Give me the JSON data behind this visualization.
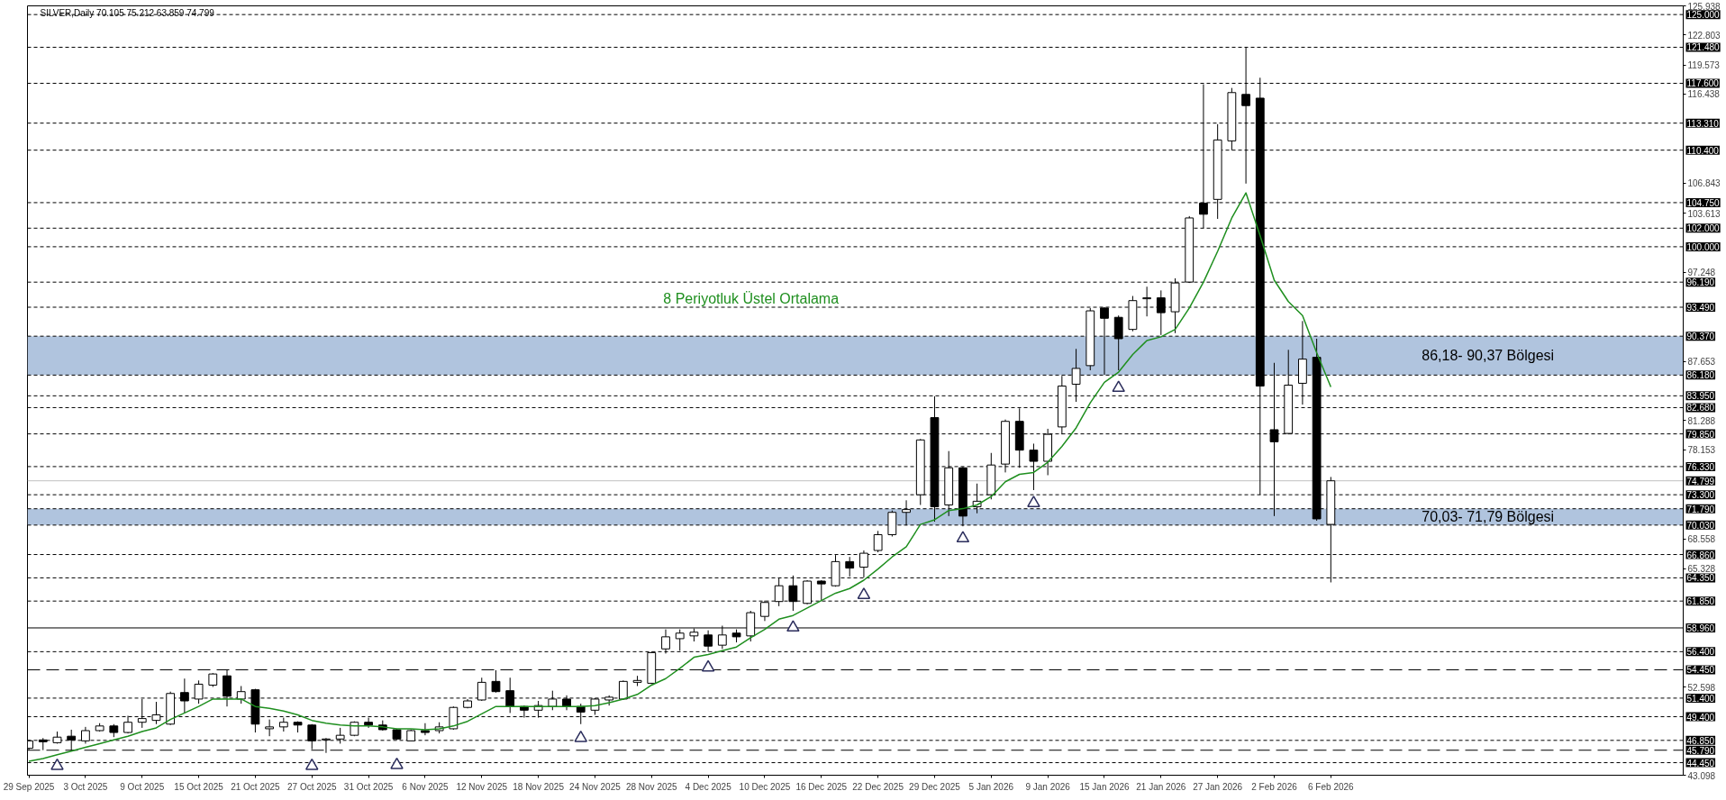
{
  "chart_data": {
    "type": "candlestick",
    "title": "SILVER,Daily  70.105 75.212 63.859 74.799",
    "categories": [
      "29 Sep 2025",
      null,
      null,
      null,
      "3 Oct 2025",
      null,
      null,
      null,
      "9 Oct 2025",
      null,
      null,
      null,
      "15 Oct 2025",
      null,
      null,
      null,
      "21 Oct 2025",
      null,
      null,
      null,
      "27 Oct 2025",
      null,
      null,
      null,
      "31 Oct 2025",
      null,
      null,
      null,
      "6 Nov 2025",
      null,
      null,
      null,
      "12 Nov 2025",
      null,
      null,
      null,
      "18 Nov 2025",
      null,
      null,
      null,
      "24 Nov 2025",
      null,
      null,
      null,
      "28 Nov 2025",
      null,
      null,
      null,
      "4 Dec 2025",
      null,
      null,
      null,
      "10 Dec 2025",
      null,
      null,
      null,
      "16 Dec 2025",
      null,
      null,
      null,
      "22 Dec 2025",
      null,
      null,
      null,
      "29 Dec 2025",
      null,
      null,
      null,
      "5 Jan 2026",
      null,
      null,
      null,
      "9 Jan 2026",
      null,
      null,
      null,
      "15 Jan 2026",
      null,
      null,
      null,
      "21 Jan 2026",
      null,
      null,
      null,
      "27 Jan 2026",
      null,
      null,
      null,
      "2 Feb 2026",
      null,
      null,
      null,
      "6 Feb 2026"
    ],
    "ohlc": [
      [
        46.0,
        46.9,
        45.8,
        46.8
      ],
      [
        46.9,
        47.1,
        45.8,
        46.7
      ],
      [
        46.6,
        47.8,
        46.5,
        47.2
      ],
      [
        47.3,
        48.0,
        45.7,
        46.9
      ],
      [
        46.8,
        48.3,
        46.5,
        47.9
      ],
      [
        47.9,
        48.7,
        47.8,
        48.4
      ],
      [
        48.4,
        48.6,
        47.2,
        47.7
      ],
      [
        47.7,
        49.5,
        47.6,
        48.8
      ],
      [
        48.8,
        51.3,
        48.2,
        49.2
      ],
      [
        49.0,
        51.0,
        48.6,
        49.6
      ],
      [
        48.6,
        52.1,
        48.5,
        51.9
      ],
      [
        52.0,
        53.5,
        49.8,
        51.1
      ],
      [
        51.3,
        53.3,
        50.8,
        52.9
      ],
      [
        52.8,
        54.1,
        52.6,
        54.0
      ],
      [
        53.8,
        54.4,
        50.5,
        51.6
      ],
      [
        51.3,
        52.7,
        50.8,
        52.1
      ],
      [
        52.3,
        52.4,
        47.7,
        48.6
      ],
      [
        48.1,
        49.1,
        47.3,
        48.3
      ],
      [
        48.3,
        49.3,
        47.8,
        48.8
      ],
      [
        48.8,
        48.9,
        47.7,
        48.5
      ],
      [
        48.5,
        48.6,
        45.9,
        46.8
      ],
      [
        46.9,
        47.1,
        45.5,
        47.0
      ],
      [
        47.0,
        48.2,
        46.5,
        47.4
      ],
      [
        47.4,
        48.9,
        47.3,
        48.8
      ],
      [
        48.8,
        49.3,
        48.2,
        48.5
      ],
      [
        48.5,
        49.0,
        47.9,
        48.0
      ],
      [
        48.0,
        48.1,
        46.9,
        47.0
      ],
      [
        46.8,
        48.0,
        46.8,
        47.9
      ],
      [
        47.9,
        48.7,
        47.4,
        47.7
      ],
      [
        47.9,
        48.8,
        47.6,
        48.3
      ],
      [
        48.1,
        50.5,
        48.0,
        50.4
      ],
      [
        50.4,
        51.3,
        50.3,
        51.1
      ],
      [
        51.2,
        53.6,
        51.1,
        53.1
      ],
      [
        53.2,
        54.4,
        52.0,
        52.1
      ],
      [
        52.2,
        53.6,
        49.8,
        50.5
      ],
      [
        50.5,
        50.6,
        49.3,
        50.1
      ],
      [
        50.1,
        51.1,
        49.3,
        50.6
      ],
      [
        50.5,
        52.2,
        50.1,
        51.3
      ],
      [
        51.3,
        51.7,
        50.1,
        50.5
      ],
      [
        50.5,
        50.8,
        48.6,
        49.9
      ],
      [
        50.1,
        51.4,
        49.6,
        51.3
      ],
      [
        51.2,
        51.7,
        50.6,
        51.5
      ],
      [
        51.3,
        53.3,
        51.2,
        53.2
      ],
      [
        53.1,
        53.8,
        52.7,
        53.3
      ],
      [
        53.0,
        56.4,
        52.9,
        56.3
      ],
      [
        56.7,
        58.8,
        56.2,
        58.0
      ],
      [
        57.8,
        58.8,
        56.5,
        58.4
      ],
      [
        58.1,
        58.9,
        57.5,
        58.5
      ],
      [
        58.2,
        58.7,
        56.4,
        57.0
      ],
      [
        57.1,
        59.2,
        56.7,
        58.2
      ],
      [
        58.4,
        58.8,
        57.4,
        58.0
      ],
      [
        58.1,
        60.8,
        57.5,
        60.6
      ],
      [
        60.2,
        61.9,
        59.7,
        61.7
      ],
      [
        61.8,
        64.3,
        61.3,
        63.5
      ],
      [
        63.5,
        64.6,
        60.8,
        61.8
      ],
      [
        61.6,
        64.1,
        61.5,
        64.0
      ],
      [
        64.0,
        64.1,
        61.9,
        63.7
      ],
      [
        63.5,
        66.8,
        63.4,
        66.1
      ],
      [
        66.1,
        66.6,
        64.5,
        65.4
      ],
      [
        65.5,
        67.3,
        64.4,
        67.0
      ],
      [
        67.3,
        69.4,
        67.1,
        69.0
      ],
      [
        69.0,
        71.6,
        68.8,
        71.4
      ],
      [
        71.4,
        72.7,
        70.0,
        71.7
      ],
      [
        73.3,
        79.3,
        72.2,
        79.2
      ],
      [
        81.6,
        83.9,
        70.4,
        72.0
      ],
      [
        72.2,
        78.0,
        71.0,
        76.2
      ],
      [
        76.2,
        76.3,
        69.9,
        71.0
      ],
      [
        72.0,
        74.5,
        71.3,
        72.6
      ],
      [
        73.3,
        77.8,
        72.8,
        76.5
      ],
      [
        76.6,
        81.4,
        75.7,
        81.2
      ],
      [
        81.2,
        82.6,
        76.2,
        78.1
      ],
      [
        78.1,
        78.8,
        73.8,
        76.9
      ],
      [
        76.9,
        80.4,
        75.4,
        79.8
      ],
      [
        80.6,
        86.1,
        79.8,
        85.0
      ],
      [
        85.2,
        89.0,
        83.3,
        86.9
      ],
      [
        87.2,
        93.4,
        86.7,
        93.1
      ],
      [
        93.4,
        93.5,
        86.2,
        92.3
      ],
      [
        92.4,
        92.6,
        86.7,
        90.1
      ],
      [
        91.1,
        94.7,
        90.9,
        94.2
      ],
      [
        94.4,
        95.7,
        92.5,
        94.5
      ],
      [
        94.5,
        95.3,
        90.5,
        92.9
      ],
      [
        93.0,
        96.6,
        90.7,
        96.1
      ],
      [
        96.2,
        103.3,
        96.1,
        103.1
      ],
      [
        104.7,
        117.5,
        102.0,
        103.5
      ],
      [
        105.1,
        113.2,
        103.0,
        111.5
      ],
      [
        111.4,
        117.1,
        110.4,
        116.6
      ],
      [
        116.4,
        121.5,
        106.8,
        115.2
      ],
      [
        116.0,
        118.2,
        73.3,
        85.0
      ],
      [
        80.3,
        87.5,
        71.0,
        79.0
      ],
      [
        79.9,
        88.9,
        79.8,
        85.1
      ],
      [
        85.3,
        92.0,
        83.0,
        87.9
      ],
      [
        88.1,
        90.1,
        70.5,
        70.7
      ],
      [
        70.105,
        75.212,
        63.859,
        74.799
      ]
    ],
    "colors": [
      "#ffffff",
      "#000000",
      "#ffffff",
      "#000000",
      "#ffffff",
      "#ffffff",
      "#000000",
      "#ffffff",
      "#ffffff",
      "#ffffff",
      "#ffffff",
      "#000000",
      "#ffffff",
      "#ffffff",
      "#000000",
      "#ffffff",
      "#000000",
      "#ffffff",
      "#ffffff",
      "#000000",
      "#000000",
      "#ffffff",
      "#ffffff",
      "#ffffff",
      "#000000",
      "#000000",
      "#000000",
      "#ffffff",
      "#000000",
      "#ffffff",
      "#ffffff",
      "#ffffff",
      "#ffffff",
      "#000000",
      "#000000",
      "#000000",
      "#ffffff",
      "#ffffff",
      "#000000",
      "#000000",
      "#ffffff",
      "#ffffff",
      "#ffffff",
      "#ffffff",
      "#ffffff",
      "#ffffff",
      "#ffffff",
      "#ffffff",
      "#000000",
      "#ffffff",
      "#000000",
      "#ffffff",
      "#ffffff",
      "#ffffff",
      "#000000",
      "#ffffff",
      "#000000",
      "#ffffff",
      "#000000",
      "#ffffff",
      "#ffffff",
      "#ffffff",
      "#ffffff",
      "#ffffff",
      "#000000",
      "#ffffff",
      "#000000",
      "#ffffff",
      "#ffffff",
      "#ffffff",
      "#000000",
      "#000000",
      "#ffffff",
      "#ffffff",
      "#ffffff",
      "#ffffff",
      "#000000",
      "#000000",
      "#ffffff",
      "#ffffff",
      "#000000",
      "#ffffff",
      "#ffffff",
      "#000000",
      "#ffffff",
      "#ffffff",
      "#000000",
      "#000000",
      "#000000",
      "#ffffff",
      "#ffffff",
      "#000000",
      "#ffffff"
    ],
    "series": [
      {
        "type": "line",
        "name": "8 Periyotluk Üstel Ortalama",
        "color": "#1f8f1f",
        "values": [
          44.6,
          44.9,
          45.3,
          45.7,
          46.1,
          46.5,
          46.9,
          47.3,
          47.8,
          48.2,
          49.1,
          49.8,
          50.5,
          51.3,
          51.3,
          51.3,
          50.5,
          50.3,
          50.0,
          49.6,
          49.0,
          48.7,
          48.5,
          48.4,
          48.4,
          48.3,
          48.1,
          48.1,
          48.0,
          48.1,
          48.4,
          48.9,
          49.7,
          50.5,
          50.5,
          50.5,
          50.5,
          50.5,
          50.5,
          50.5,
          50.6,
          50.9,
          51.3,
          51.8,
          52.8,
          53.5,
          54.6,
          55.8,
          56.1,
          56.5,
          56.9,
          57.9,
          58.8,
          59.9,
          60.3,
          61.1,
          61.9,
          62.7,
          63.2,
          64.1,
          65.3,
          66.6,
          67.7,
          70.1,
          70.6,
          71.6,
          71.8,
          72.2,
          73.1,
          74.7,
          75.5,
          75.7,
          76.8,
          78.5,
          80.5,
          83.2,
          85.4,
          86.5,
          88.4,
          89.9,
          90.3,
          91.1,
          93.4,
          96.2,
          99.5,
          103.1,
          105.8,
          101.2,
          96.4,
          94.1,
          92.6,
          88.6,
          84.9
        ]
      },
      {
        "type": "scatter",
        "color": "#2b2d5c",
        "marker": "triangle",
        "values": [
          null,
          null,
          44.1,
          null,
          null,
          null,
          null,
          null,
          null,
          null,
          null,
          null,
          null,
          null,
          null,
          null,
          null,
          null,
          null,
          null,
          44.1,
          null,
          null,
          null,
          null,
          null,
          44.2,
          null,
          null,
          null,
          null,
          null,
          null,
          null,
          null,
          null,
          null,
          null,
          null,
          47.1,
          null,
          null,
          null,
          null,
          null,
          null,
          null,
          null,
          54.7,
          null,
          null,
          null,
          null,
          null,
          59.0,
          null,
          null,
          null,
          null,
          62.5,
          null,
          null,
          null,
          null,
          null,
          null,
          68.6,
          null,
          null,
          null,
          null,
          72.4,
          null,
          null,
          null,
          null,
          null,
          84.8,
          null,
          null,
          null,
          null,
          null,
          null,
          null,
          null,
          null,
          null,
          null,
          null,
          null,
          null,
          null
        ]
      }
    ],
    "ylim": [
      43.098,
      125.938
    ],
    "yticks": [
      125.938,
      122.803,
      119.573,
      116.438,
      106.843,
      103.613,
      97.248,
      87.653,
      81.288,
      78.153,
      68.558,
      65.328,
      52.598,
      43.098
    ],
    "ref_lines": [
      {
        "axis": "y",
        "value": 125.0,
        "label": "125.000",
        "color": "#000000",
        "line_style": "dotted"
      },
      {
        "axis": "y",
        "value": 121.48,
        "label": "121.480",
        "color": "#000000",
        "line_style": "dotted"
      },
      {
        "axis": "y",
        "value": 117.6,
        "label": "117.600",
        "color": "#000000",
        "line_style": "dotted"
      },
      {
        "axis": "y",
        "value": 113.31,
        "label": "113.310",
        "color": "#000000",
        "line_style": "dotted"
      },
      {
        "axis": "y",
        "value": 110.4,
        "label": "110.400",
        "color": "#000000",
        "line_style": "dotted"
      },
      {
        "axis": "y",
        "value": 104.75,
        "label": "104.750",
        "color": "#000000",
        "line_style": "dotted"
      },
      {
        "axis": "y",
        "value": 102.0,
        "label": "102.000",
        "color": "#000000",
        "line_style": "dotted"
      },
      {
        "axis": "y",
        "value": 100.0,
        "label": "100.000",
        "color": "#000000",
        "line_style": "dotted"
      },
      {
        "axis": "y",
        "value": 96.19,
        "label": "96.190",
        "color": "#000000",
        "line_style": "dotted"
      },
      {
        "axis": "y",
        "value": 93.49,
        "label": "93.490",
        "color": "#000000",
        "line_style": "dotted"
      },
      {
        "axis": "y",
        "value": 90.37,
        "label": "90.370",
        "color": "#000000",
        "line_style": "dotted"
      },
      {
        "axis": "y",
        "value": 86.18,
        "label": "86.180",
        "color": "#000000",
        "line_style": "dotted"
      },
      {
        "axis": "y",
        "value": 83.95,
        "label": "83.950",
        "color": "#000000",
        "line_style": "dotted"
      },
      {
        "axis": "y",
        "value": 82.68,
        "label": "82.680",
        "color": "#000000",
        "line_style": "dotted"
      },
      {
        "axis": "y",
        "value": 79.85,
        "label": "79.850",
        "color": "#000000",
        "line_style": "dotted"
      },
      {
        "axis": "y",
        "value": 76.33,
        "label": "76.330",
        "color": "#000000",
        "line_style": "dotted"
      },
      {
        "axis": "y",
        "value": 74.799,
        "label": "74.799",
        "color": "#c0c0c0",
        "line_style": "solid"
      },
      {
        "axis": "y",
        "value": 73.3,
        "label": "73.300",
        "color": "#000000",
        "line_style": "dotted"
      },
      {
        "axis": "y",
        "value": 71.79,
        "label": "71.790",
        "color": "#000000",
        "line_style": "dotted"
      },
      {
        "axis": "y",
        "value": 70.03,
        "label": "70.030",
        "color": "#000000",
        "line_style": "dotted"
      },
      {
        "axis": "y",
        "value": 66.86,
        "label": "66.860",
        "color": "#000000",
        "line_style": "dotted"
      },
      {
        "axis": "y",
        "value": 64.35,
        "label": "64.350",
        "color": "#000000",
        "line_style": "dotted"
      },
      {
        "axis": "y",
        "value": 61.85,
        "label": "61.850",
        "color": "#000000",
        "line_style": "dotted"
      },
      {
        "axis": "y",
        "value": 58.96,
        "label": "58.960",
        "color": "#000000",
        "line_style": "solid"
      },
      {
        "axis": "y",
        "value": 56.4,
        "label": "56.400",
        "color": "#000000",
        "line_style": "dotted"
      },
      {
        "axis": "y",
        "value": 54.45,
        "label": "54.450",
        "color": "#000000",
        "line_style": "dashed"
      },
      {
        "axis": "y",
        "value": 51.4,
        "label": "51.400",
        "color": "#000000",
        "line_style": "dotted"
      },
      {
        "axis": "y",
        "value": 49.4,
        "label": "49.400",
        "color": "#000000",
        "line_style": "dotted"
      },
      {
        "axis": "y",
        "value": 46.85,
        "label": "46.850",
        "color": "#000000",
        "line_style": "dotted"
      },
      {
        "axis": "y",
        "value": 45.79,
        "label": "45.790",
        "color": "#000000",
        "line_style": "dashed"
      },
      {
        "axis": "y",
        "value": 44.45,
        "label": "44.450",
        "color": "#000000",
        "line_style": "dotted"
      }
    ],
    "bands": [
      {
        "axis": "y",
        "from": 86.18,
        "to": 90.37,
        "label": "86,18- 90,37 Bölgesi",
        "color": "#b0c4de"
      },
      {
        "axis": "y",
        "from": 70.03,
        "to": 71.79,
        "label": "70,03- 71,79 Bölgesi",
        "color": "#b0c4de"
      }
    ]
  }
}
